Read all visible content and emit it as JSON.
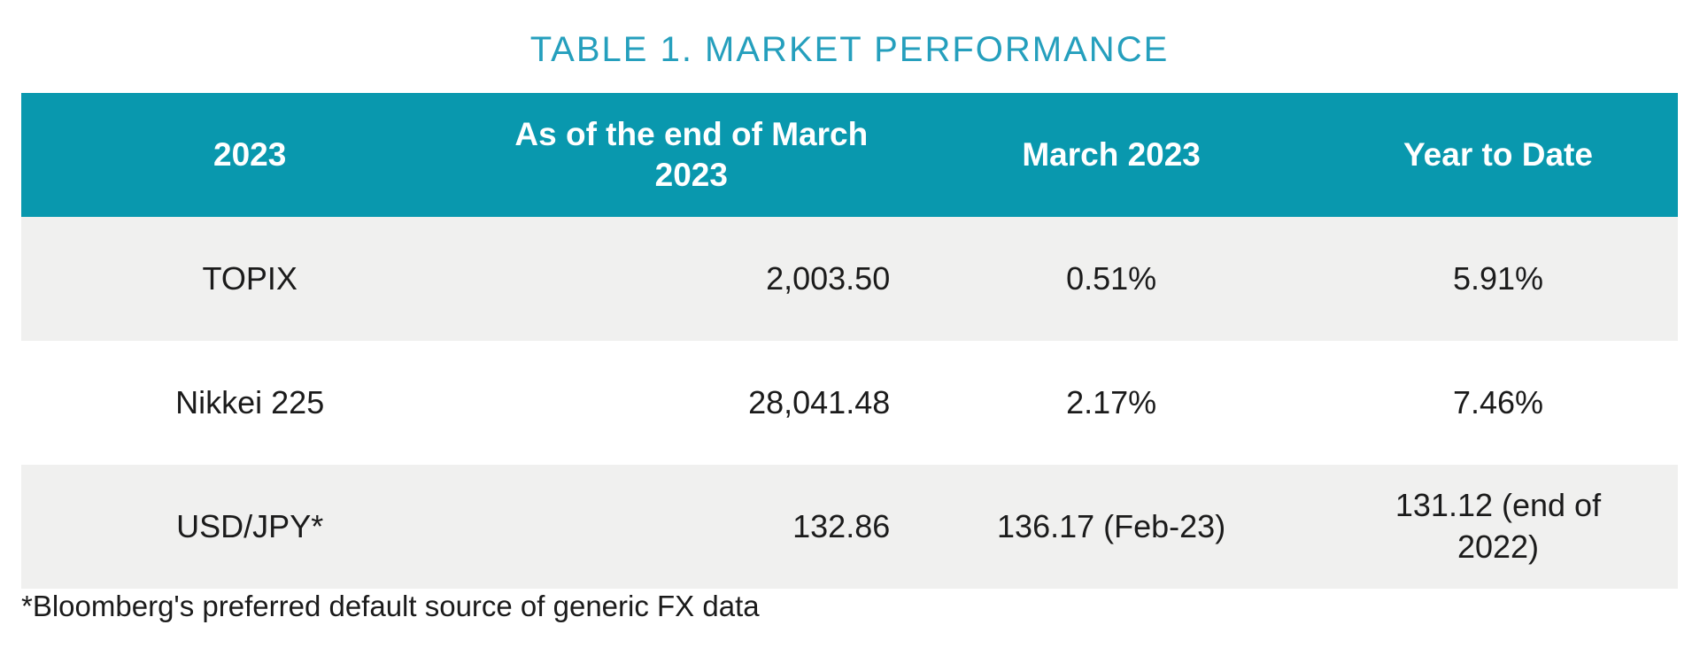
{
  "title": "TABLE 1. MARKET PERFORMANCE",
  "table": {
    "columns": [
      {
        "label": "2023"
      },
      {
        "label": "As of the end of March 2023"
      },
      {
        "label": "March 2023"
      },
      {
        "label": "Year to Date"
      }
    ],
    "rows": [
      {
        "name": "TOPIX",
        "end_of_march_2023": "2,003.50",
        "march_2023": "0.51%",
        "year_to_date": "5.91%"
      },
      {
        "name": "Nikkei 225",
        "end_of_march_2023": "28,041.48",
        "march_2023": "2.17%",
        "year_to_date": "7.46%"
      },
      {
        "name": "USD/JPY*",
        "end_of_march_2023": "132.86",
        "march_2023": "136.17 (Feb-23)",
        "year_to_date": "131.12 (end of 2022)"
      }
    ]
  },
  "footnote": "*Bloomberg's preferred default source of generic FX data",
  "colors": {
    "header_bg": "#0998AE",
    "title": "#259FBD",
    "row_alt_bg": "#F0F0EF",
    "header_text": "#FFFFFF",
    "body_text": "#1B1B1B"
  }
}
